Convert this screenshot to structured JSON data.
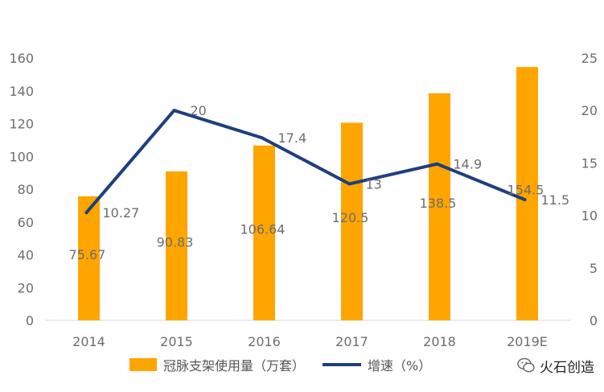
{
  "chart_data": {
    "type": "bar",
    "categories": [
      "2014",
      "2015",
      "2016",
      "2017",
      "2018",
      "2019E"
    ],
    "series": [
      {
        "name": "冠脉支架使用量（万套）",
        "type": "bar",
        "axis": "left",
        "values": [
          75.67,
          90.83,
          106.64,
          120.5,
          138.5,
          154.5
        ],
        "labels": [
          "75.67",
          "90.83",
          "106.64",
          "120.5",
          "138.5",
          "154.5"
        ],
        "color": "#FFA500"
      },
      {
        "name": "增速（%）",
        "type": "line",
        "axis": "right",
        "values": [
          10.27,
          20,
          17.4,
          13,
          14.9,
          11.5
        ],
        "labels": [
          "10.27",
          "20",
          "17.4",
          "13",
          "14.9",
          "11.5"
        ],
        "color": "#1F3F7F"
      }
    ],
    "y_left": {
      "ylim": [
        0,
        160
      ],
      "ticks": [
        "0",
        "20",
        "40",
        "60",
        "80",
        "100",
        "120",
        "140",
        "160"
      ]
    },
    "y_right": {
      "ylim": [
        0,
        25
      ],
      "ticks": [
        "0",
        "5",
        "10",
        "15",
        "20",
        "25"
      ]
    },
    "grid": false,
    "legend_position": "bottom"
  },
  "watermark": {
    "text": "火石创造",
    "icon": "wechat-icon"
  }
}
